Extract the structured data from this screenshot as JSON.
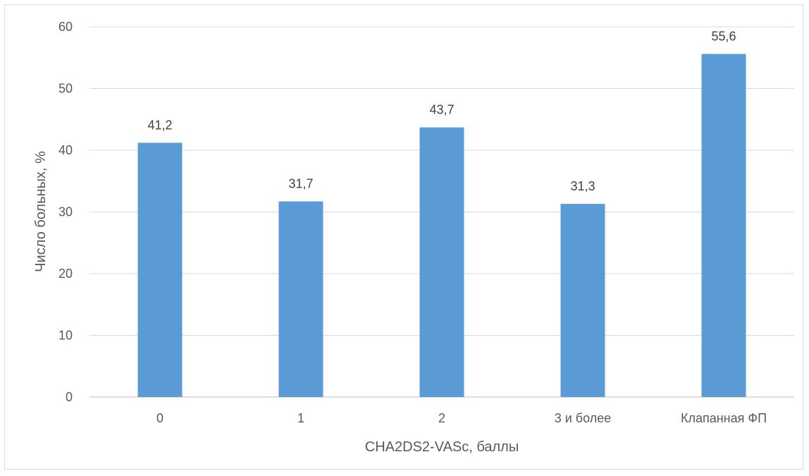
{
  "chart_data": {
    "type": "bar",
    "categories": [
      "0",
      "1",
      "2",
      "3 и более",
      "Клапанная ФП"
    ],
    "values": [
      41.2,
      31.7,
      43.7,
      31.3,
      55.6
    ],
    "value_labels": [
      "41,2",
      "31,7",
      "43,7",
      "31,3",
      "55,6"
    ],
    "xlabel": "CHA2DS2-VASc, баллы",
    "ylabel": "Число больных, %",
    "ylim": [
      0,
      60
    ],
    "yticks": [
      0,
      10,
      20,
      30,
      40,
      50,
      60
    ],
    "grid": true,
    "legend": "none",
    "colors": {
      "bar": "#5b9bd5",
      "grid": "#d9d9d9",
      "axis": "#bfbfbf"
    }
  }
}
